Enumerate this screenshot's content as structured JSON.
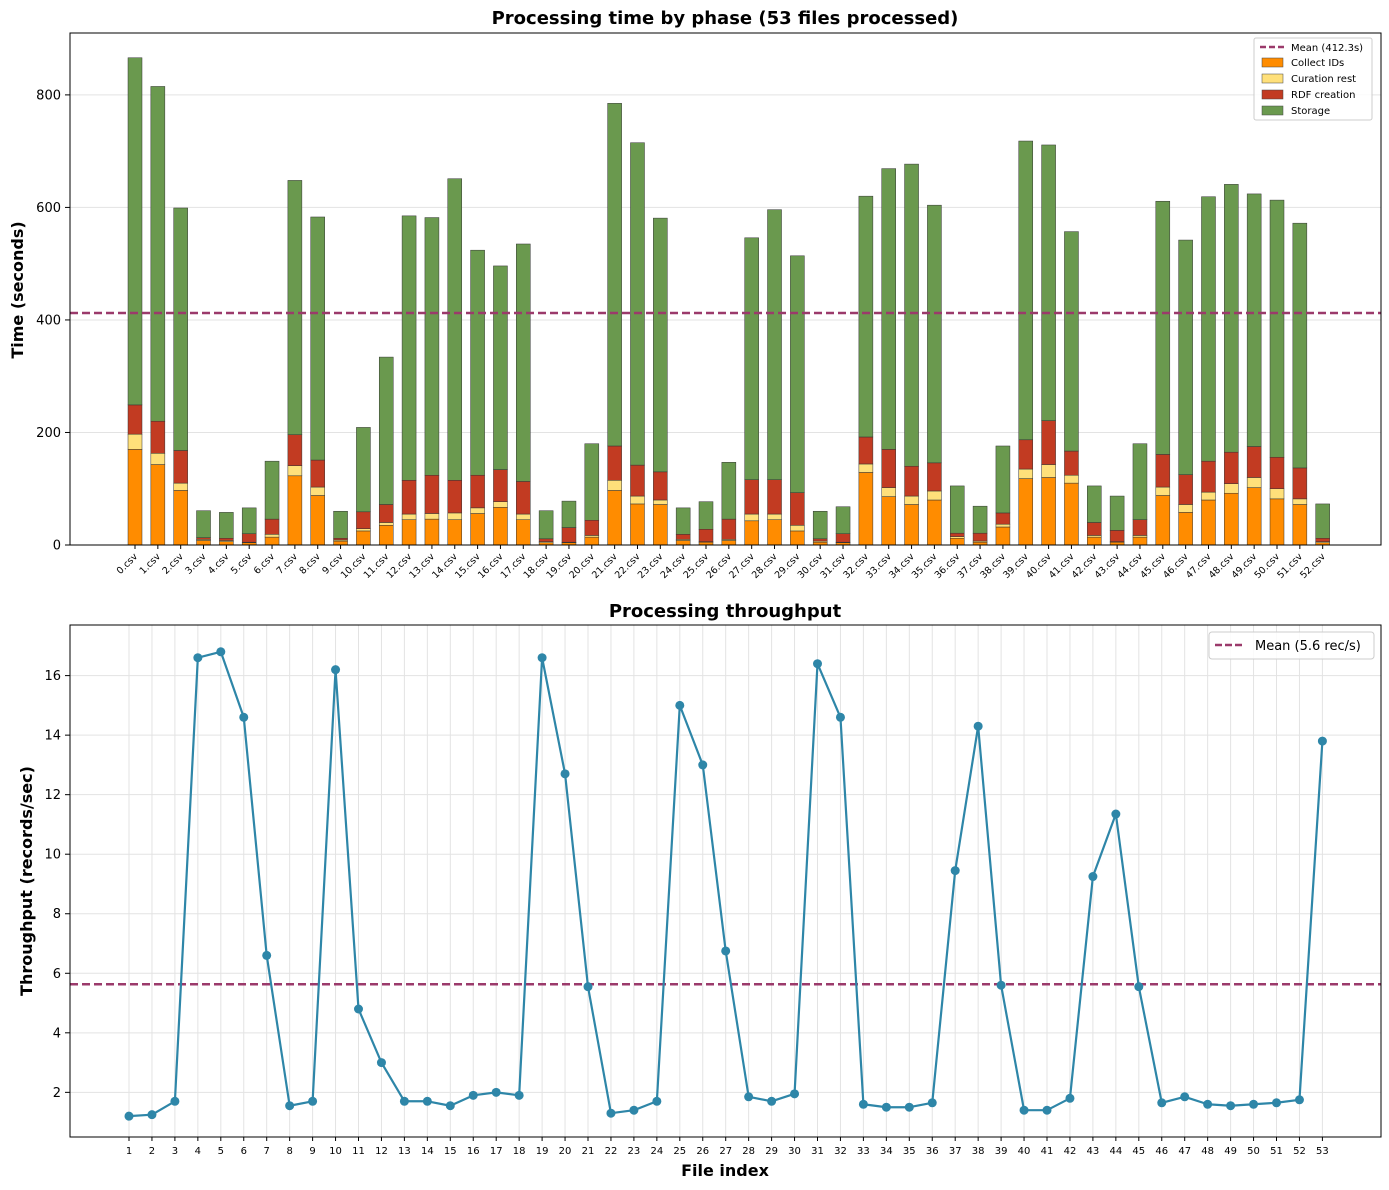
{
  "chart_data": [
    {
      "type": "bar",
      "stacked": true,
      "title": "Processing time by phase (53 files processed)",
      "xlabel": "",
      "ylabel": "Time (seconds)",
      "ylim": [
        0,
        910
      ],
      "yticks": [
        0,
        200,
        400,
        600,
        800
      ],
      "grid": true,
      "legend_position": "top-right",
      "categories": [
        "0.csv",
        "1.csv",
        "2.csv",
        "3.csv",
        "4.csv",
        "5.csv",
        "6.csv",
        "7.csv",
        "8.csv",
        "9.csv",
        "10.csv",
        "11.csv",
        "12.csv",
        "13.csv",
        "14.csv",
        "15.csv",
        "16.csv",
        "17.csv",
        "18.csv",
        "19.csv",
        "20.csv",
        "21.csv",
        "22.csv",
        "23.csv",
        "24.csv",
        "25.csv",
        "26.csv",
        "27.csv",
        "28.csv",
        "29.csv",
        "30.csv",
        "31.csv",
        "32.csv",
        "33.csv",
        "34.csv",
        "35.csv",
        "36.csv",
        "37.csv",
        "38.csv",
        "39.csv",
        "40.csv",
        "41.csv",
        "42.csv",
        "43.csv",
        "44.csv",
        "45.csv",
        "46.csv",
        "47.csv",
        "48.csv",
        "49.csv",
        "50.csv",
        "51.csv",
        "52.csv"
      ],
      "mean_line": {
        "label": "Mean (412.3s)",
        "value": 412.3,
        "color": "#9b3a6b"
      },
      "series": [
        {
          "name": "Collect IDs",
          "color": "#ff8c00",
          "values": [
            170,
            143,
            97,
            8,
            6,
            4,
            14,
            123,
            88,
            7,
            25,
            35,
            45,
            46,
            45,
            56,
            67,
            45,
            4,
            4,
            14,
            97,
            73,
            72,
            8,
            5,
            8,
            43,
            45,
            25,
            5,
            4,
            129,
            86,
            72,
            80,
            12,
            5,
            32,
            118,
            120,
            110,
            14,
            5,
            14,
            88,
            58,
            80,
            92,
            102,
            82,
            72,
            4
          ]
        },
        {
          "name": "Curation rest",
          "color": "#ffe07a",
          "values": [
            27,
            20,
            13,
            2,
            2,
            1,
            5,
            18,
            15,
            2,
            4,
            5,
            10,
            10,
            12,
            10,
            10,
            10,
            2,
            1,
            3,
            18,
            14,
            8,
            2,
            1,
            2,
            12,
            10,
            10,
            2,
            1,
            15,
            16,
            15,
            16,
            3,
            2,
            5,
            17,
            23,
            14,
            3,
            1,
            3,
            15,
            14,
            14,
            17,
            18,
            18,
            10,
            2
          ]
        },
        {
          "name": "RDF creation",
          "color": "#c23b22",
          "values": [
            52,
            57,
            58,
            3,
            4,
            15,
            27,
            55,
            48,
            3,
            30,
            32,
            60,
            68,
            58,
            58,
            57,
            58,
            5,
            26,
            27,
            61,
            55,
            50,
            9,
            22,
            36,
            61,
            61,
            58,
            4,
            15,
            48,
            68,
            53,
            50,
            6,
            14,
            20,
            52,
            78,
            43,
            23,
            20,
            28,
            58,
            53,
            55,
            56,
            55,
            56,
            55,
            6
          ]
        },
        {
          "name": "Storage",
          "color": "#6a994e",
          "values": [
            617,
            595,
            431,
            48,
            46,
            46,
            103,
            452,
            432,
            48,
            150,
            262,
            470,
            458,
            536,
            400,
            362,
            422,
            50,
            47,
            136,
            609,
            573,
            451,
            47,
            49,
            101,
            430,
            480,
            421,
            49,
            48,
            428,
            499,
            537,
            458,
            84,
            48,
            119,
            531,
            490,
            390,
            65,
            61,
            135,
            450,
            417,
            470,
            476,
            449,
            457,
            435,
            61
          ]
        }
      ]
    },
    {
      "type": "line",
      "title": "Processing throughput",
      "xlabel": "File index",
      "ylabel": "Throughput (records/sec)",
      "ylim": [
        0.5,
        17.7
      ],
      "yticks": [
        2,
        4,
        6,
        8,
        10,
        12,
        14,
        16
      ],
      "grid": true,
      "legend_position": "top-right",
      "mean_line": {
        "label": "Mean (5.6 rec/s)",
        "value": 5.63,
        "color": "#9b3a6b"
      },
      "series": [
        {
          "name": "Throughput",
          "color": "#2e86a8",
          "x": [
            1,
            2,
            3,
            4,
            5,
            6,
            7,
            8,
            9,
            10,
            11,
            12,
            13,
            14,
            15,
            16,
            17,
            18,
            19,
            20,
            21,
            22,
            23,
            24,
            25,
            26,
            27,
            28,
            29,
            30,
            31,
            32,
            33,
            34,
            35,
            36,
            37,
            38,
            39,
            40,
            41,
            42,
            43,
            44,
            45,
            46,
            47,
            48,
            49,
            50,
            51,
            52,
            53
          ],
          "y": [
            1.2,
            1.25,
            1.7,
            16.6,
            16.8,
            14.6,
            6.6,
            1.55,
            1.7,
            16.2,
            4.8,
            3.0,
            1.7,
            1.7,
            1.55,
            1.9,
            2.0,
            1.9,
            16.6,
            12.7,
            5.55,
            1.3,
            1.4,
            1.7,
            15.0,
            13.0,
            6.75,
            1.85,
            1.7,
            1.95,
            16.4,
            14.6,
            1.6,
            1.5,
            1.5,
            1.65,
            9.45,
            14.3,
            5.6,
            1.4,
            1.4,
            1.8,
            9.25,
            11.35,
            5.55,
            1.65,
            1.85,
            1.6,
            1.55,
            1.6,
            1.65,
            1.75,
            13.8
          ]
        }
      ]
    }
  ]
}
